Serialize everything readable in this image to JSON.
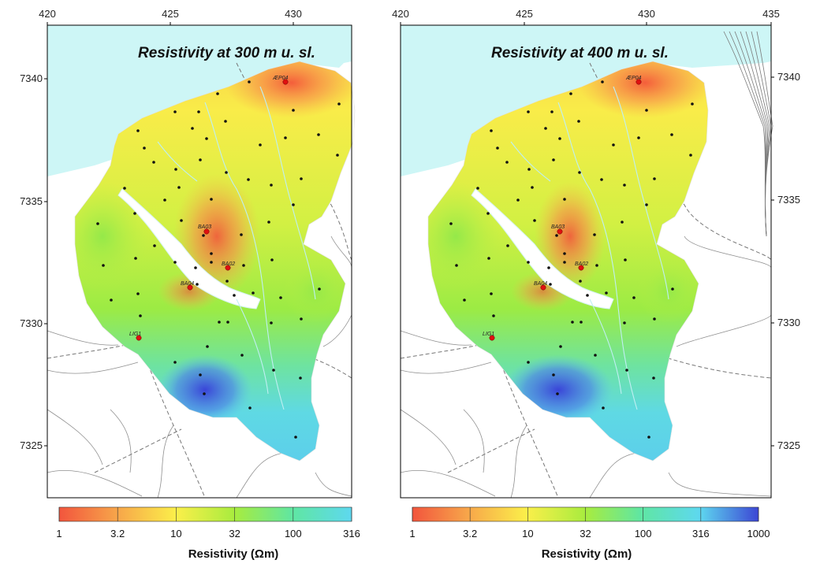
{
  "maps": [
    {
      "title": "Resistivity at 300 m u. sl.",
      "x_ticks": [
        "420",
        "425",
        "430"
      ],
      "y_ticks": [
        "7340",
        "7335",
        "7330",
        "7325"
      ],
      "colorbar": {
        "ticks": [
          "1",
          "3.2",
          "10",
          "32",
          "100",
          "316"
        ],
        "label": "Resistivity (Ωm)"
      }
    },
    {
      "title": "Resistivity at 400 m u. sl.",
      "x_ticks": [
        "420",
        "425",
        "430",
        "435"
      ],
      "y_ticks": [
        "7340",
        "7335",
        "7330",
        "7325"
      ],
      "colorbar": {
        "ticks": [
          "1",
          "3.2",
          "10",
          "32",
          "100",
          "316",
          "1000"
        ],
        "label": "Resistivity (Ωm)"
      }
    }
  ],
  "sites": [
    {
      "label": "ÆP04"
    },
    {
      "label": "BA03"
    },
    {
      "label": "BA02"
    },
    {
      "label": "BA04"
    },
    {
      "label": "LIG1"
    }
  ],
  "colors": {
    "sea": "#cdf6f6",
    "low_resistivity": "#f4573a",
    "mid_resistivity": "#e9f24a",
    "high_resistivity": "#63e6ec",
    "very_high_resistivity": "#3a45d8"
  }
}
